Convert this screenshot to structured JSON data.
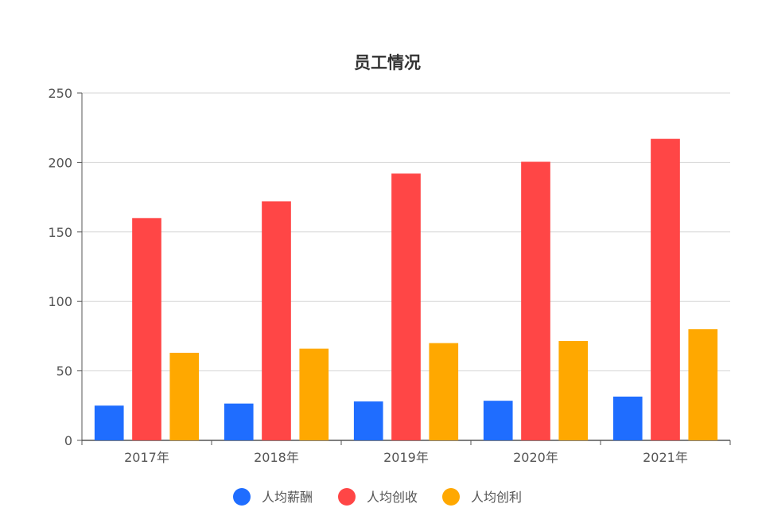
{
  "chart_data": {
    "type": "bar",
    "title": "员工情况",
    "categories": [
      "2017年",
      "2018年",
      "2019年",
      "2020年",
      "2021年"
    ],
    "series": [
      {
        "name": "人均薪酬",
        "color": "#1f6dff",
        "values": [
          25,
          26.5,
          28,
          28.5,
          31.5
        ]
      },
      {
        "name": "人均创收",
        "color": "#ff4646",
        "values": [
          160,
          172,
          192,
          200.5,
          217
        ]
      },
      {
        "name": "人均创利",
        "color": "#ffa800",
        "values": [
          63,
          66,
          70,
          71.5,
          80
        ]
      }
    ],
    "ylim": [
      0,
      250
    ],
    "yticks": [
      0,
      50,
      100,
      150,
      200,
      250
    ],
    "grid": true,
    "legend": "bottom-center",
    "xlabel": "",
    "ylabel": ""
  }
}
